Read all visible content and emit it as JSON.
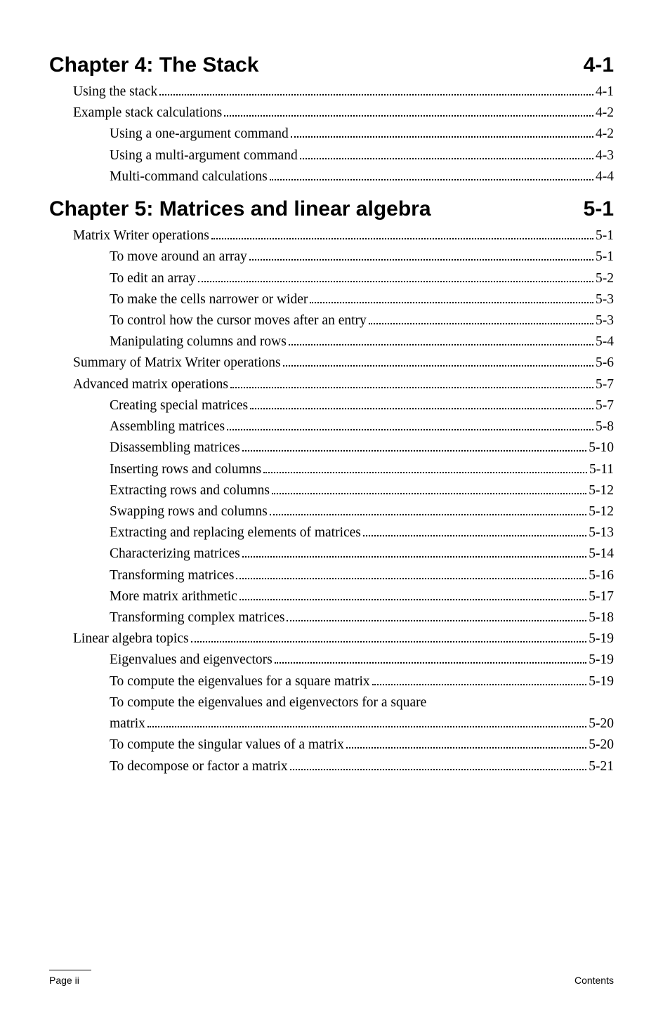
{
  "chapter4": {
    "title": "Chapter 4: The Stack",
    "page": "4-1",
    "entries": [
      {
        "label": "Using the stack",
        "page": "4-1",
        "indent": 1
      },
      {
        "label": "Example stack calculations",
        "page": "4-2",
        "indent": 1
      },
      {
        "label": "Using a one-argument command",
        "page": "4-2",
        "indent": 2
      },
      {
        "label": "Using a multi-argument command",
        "page": "4-3",
        "indent": 2
      },
      {
        "label": "Multi-command calculations",
        "page": "4-4",
        "indent": 2
      }
    ]
  },
  "chapter5": {
    "title": "Chapter 5: Matrices and linear algebra",
    "page": "5-1",
    "entries": [
      {
        "label": "Matrix Writer operations",
        "page": "5-1",
        "indent": 1
      },
      {
        "label": "To move around an array",
        "page": "5-1",
        "indent": 2
      },
      {
        "label": "To edit an array",
        "page": "5-2",
        "indent": 2
      },
      {
        "label": "To make the cells narrower or wider",
        "page": "5-3",
        "indent": 2
      },
      {
        "label": "To control how the cursor moves after an entry",
        "page": "5-3",
        "indent": 2
      },
      {
        "label": "Manipulating columns and rows",
        "page": "5-4",
        "indent": 2
      },
      {
        "label": "Summary of Matrix Writer operations",
        "page": "5-6",
        "indent": 1
      },
      {
        "label": "Advanced matrix operations",
        "page": "5-7",
        "indent": 1
      },
      {
        "label": "Creating special matrices",
        "page": "5-7",
        "indent": 2
      },
      {
        "label": "Assembling matrices",
        "page": "5-8",
        "indent": 2
      },
      {
        "label": "Disassembling matrices",
        "page": "5-10",
        "indent": 2
      },
      {
        "label": "Inserting rows and columns",
        "page": "5-11",
        "indent": 2
      },
      {
        "label": "Extracting rows and columns",
        "page": "5-12",
        "indent": 2
      },
      {
        "label": "Swapping rows and columns",
        "page": "5-12",
        "indent": 2
      },
      {
        "label": "Extracting and replacing elements of matrices",
        "page": "5-13",
        "indent": 2
      },
      {
        "label": "Characterizing matrices",
        "page": "5-14",
        "indent": 2
      },
      {
        "label": "Transforming matrices",
        "page": "5-16",
        "indent": 2
      },
      {
        "label": "More matrix arithmetic",
        "page": "5-17",
        "indent": 2
      },
      {
        "label": "Transforming complex matrices",
        "page": "5-18",
        "indent": 2
      },
      {
        "label": "Linear algebra topics",
        "page": "5-19",
        "indent": 1
      },
      {
        "label": "Eigenvalues and eigenvectors",
        "page": "5-19",
        "indent": 2
      },
      {
        "label": "To compute the eigenvalues for a square matrix",
        "page": "5-19",
        "indent": 2
      },
      {
        "label": "To compute the eigenvalues and eigenvectors for a square",
        "continuation": "matrix",
        "page": "5-20",
        "indent": 2
      },
      {
        "label": "To compute the singular values of a matrix",
        "page": "5-20",
        "indent": 2
      },
      {
        "label": "To decompose or factor a matrix",
        "page": "5-21",
        "indent": 2
      }
    ]
  },
  "footer": {
    "left": "Page ii",
    "right": "Contents"
  }
}
